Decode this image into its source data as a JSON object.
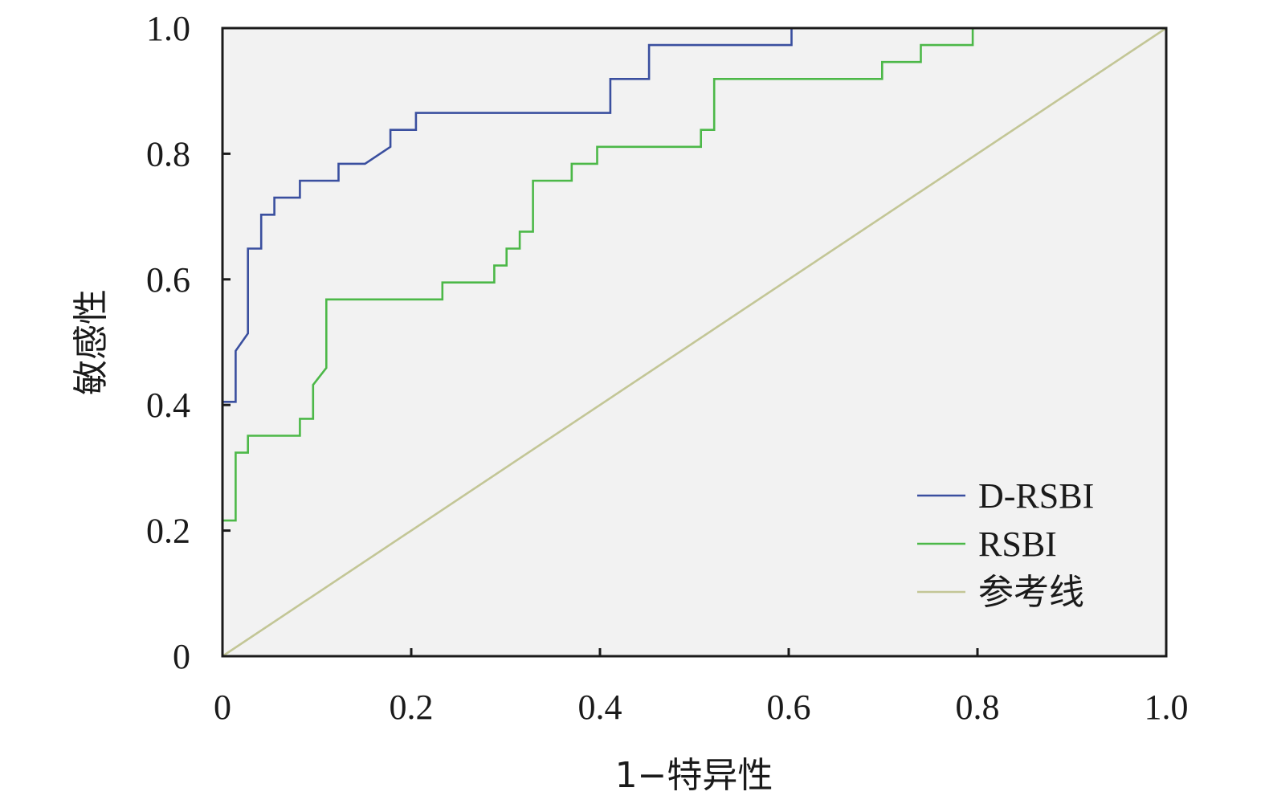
{
  "chart_data": {
    "type": "line",
    "title": "",
    "xlabel": "1−特异性",
    "ylabel": "敏感性",
    "xlim": [
      0,
      1
    ],
    "ylim": [
      0,
      1
    ],
    "x_ticks": [
      "0",
      "0.2",
      "0.4",
      "0.6",
      "0.8",
      "1.0"
    ],
    "y_ticks": [
      "0",
      "0.2",
      "0.4",
      "0.6",
      "0.8",
      "1.0"
    ],
    "grid": false,
    "legend_position": "bottom-right",
    "background_color": "#f2f2f2",
    "series": [
      {
        "name": "D-RSBI",
        "color": "#3a4f9f",
        "x": [
          0.0,
          0.014,
          0.014,
          0.027,
          0.027,
          0.041,
          0.041,
          0.055,
          0.055,
          0.082,
          0.082,
          0.123,
          0.123,
          0.151,
          0.178,
          0.178,
          0.205,
          0.205,
          0.411,
          0.411,
          0.452,
          0.452,
          0.603,
          0.603
        ],
        "y": [
          0.405,
          0.405,
          0.486,
          0.514,
          0.649,
          0.649,
          0.703,
          0.703,
          0.73,
          0.73,
          0.757,
          0.757,
          0.784,
          0.784,
          0.811,
          0.838,
          0.838,
          0.865,
          0.865,
          0.919,
          0.919,
          0.973,
          0.973,
          1.0
        ]
      },
      {
        "name": "RSBI",
        "color": "#4cb848",
        "x": [
          0.0,
          0.014,
          0.014,
          0.027,
          0.027,
          0.082,
          0.082,
          0.096,
          0.096,
          0.11,
          0.11,
          0.233,
          0.233,
          0.288,
          0.288,
          0.301,
          0.301,
          0.315,
          0.315,
          0.329,
          0.329,
          0.37,
          0.37,
          0.397,
          0.397,
          0.507,
          0.507,
          0.521,
          0.521,
          0.699,
          0.699,
          0.74,
          0.74,
          0.795,
          0.795
        ],
        "y": [
          0.216,
          0.216,
          0.324,
          0.324,
          0.351,
          0.351,
          0.378,
          0.378,
          0.432,
          0.459,
          0.568,
          0.568,
          0.595,
          0.595,
          0.622,
          0.622,
          0.649,
          0.649,
          0.676,
          0.676,
          0.757,
          0.757,
          0.784,
          0.784,
          0.811,
          0.811,
          0.838,
          0.838,
          0.919,
          0.919,
          0.946,
          0.946,
          0.973,
          0.973,
          1.0
        ]
      },
      {
        "name": "参考线",
        "color": "#c3c696",
        "x": [
          0,
          1
        ],
        "y": [
          0,
          1
        ]
      }
    ]
  }
}
